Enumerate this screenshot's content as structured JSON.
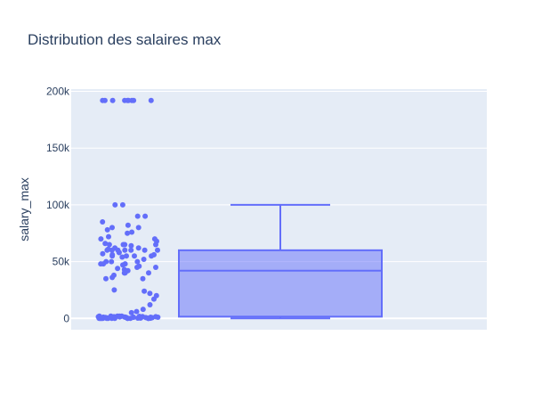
{
  "chart_data": {
    "type": "box",
    "title": "Distribution des salaires max",
    "xlabel": "",
    "ylabel": "salary_max",
    "ylim": [
      -10000,
      202000
    ],
    "yticks": [
      0,
      50000,
      100000,
      150000,
      200000
    ],
    "ytick_labels": [
      "0",
      "50k",
      "100k",
      "150k",
      "200k"
    ],
    "grid": true,
    "colors": {
      "plot_bg": "#e5ecf6",
      "series": "#636efa",
      "box_fill": "rgba(99,110,250,0.5)",
      "text": "#2a3f5f"
    },
    "box": {
      "min": 0,
      "q1": 1500,
      "median": 42000,
      "q3": 60000,
      "upper_fence": 100000
    },
    "points": [
      192000,
      192000,
      192000,
      192000,
      192000,
      192000,
      192000,
      192000,
      192000,
      100000,
      100000,
      90000,
      90000,
      85000,
      82000,
      80000,
      80000,
      78000,
      76000,
      75000,
      72000,
      70000,
      70000,
      68000,
      66000,
      65000,
      65000,
      65000,
      65000,
      64000,
      62000,
      62000,
      61000,
      60000,
      60000,
      60000,
      60000,
      60000,
      60000,
      60000,
      58000,
      58000,
      57000,
      56000,
      56000,
      55000,
      55000,
      55000,
      55000,
      54000,
      52000,
      50000,
      50000,
      50000,
      48000,
      48000,
      48000,
      47000,
      46000,
      45000,
      45000,
      44000,
      43000,
      42000,
      40000,
      40000,
      40000,
      40000,
      38000,
      36000,
      35000,
      35000,
      25000,
      24000,
      22000,
      20000,
      17000,
      12000,
      8000,
      6000,
      5000,
      2000,
      2000,
      2000,
      2000,
      2000,
      1800,
      1600,
      1500,
      1500,
      1400,
      1300,
      1200,
      1200,
      1100,
      1000,
      1000,
      1000,
      900,
      800,
      800,
      700,
      600,
      500,
      500,
      400,
      300,
      300,
      200,
      100,
      0,
      0,
      0,
      0,
      0,
      0,
      0,
      0,
      0,
      0,
      0,
      0,
      0,
      0,
      0
    ]
  }
}
